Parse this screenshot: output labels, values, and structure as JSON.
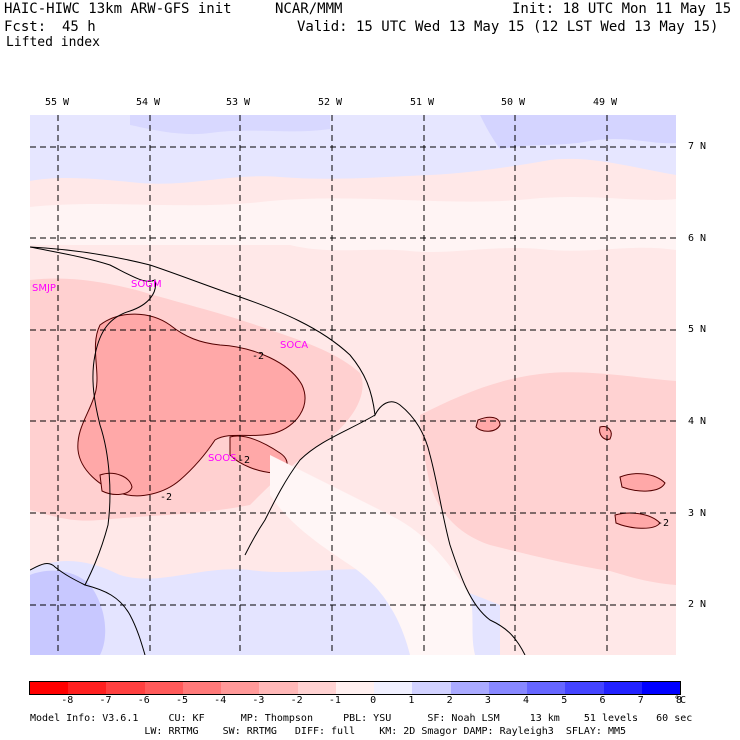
{
  "header": {
    "model_title": "HAIC-HIWC 13km ARW-GFS init",
    "center": "NCAR/MMM",
    "init": "Init: 18 UTC Mon 11 May 15",
    "fcst_label": "Fcst:",
    "fcst_value": "45 h",
    "valid": "Valid: 15 UTC Wed 13 May 15 (12 LST Wed 13 May 15)",
    "field_name": "Lifted index"
  },
  "lon_labels": [
    "55 W",
    "54 W",
    "53 W",
    "52 W",
    "51 W",
    "50 W",
    "49 W"
  ],
  "lat_labels": [
    "7 N",
    "6 N",
    "5 N",
    "4 N",
    "3 N",
    "2 N"
  ],
  "stations": [
    "SMJP",
    "SOGM",
    "SOCA",
    "SOOS"
  ],
  "contour_labels": [
    "-2",
    "-2",
    "-2",
    "-2"
  ],
  "colorbar": {
    "ticks": [
      "-8",
      "-7",
      "-6",
      "-5",
      "-4",
      "-3",
      "-2",
      "-1",
      "0",
      "1",
      "2",
      "3",
      "4",
      "5",
      "6",
      "7",
      "8"
    ],
    "unit": "°C",
    "colors": [
      "#ff0000",
      "#ff2020",
      "#ff4040",
      "#ff5a5a",
      "#ff7a7a",
      "#ff9999",
      "#ffb8b8",
      "#ffd2d2",
      "#fff0f0",
      "#f0f0ff",
      "#d2d2ff",
      "#aaaaff",
      "#8888ff",
      "#6666ff",
      "#4444ff",
      "#2222ff",
      "#0000ff"
    ]
  },
  "footer": {
    "line1": "Model Info: V3.6.1     CU: KF      MP: Thompson     PBL: YSU      SF: Noah LSM     13 km    51 levels   60 sec",
    "line2": "                   LW: RRTMG    SW: RRTMG   DIFF: full    KM: 2D Smagor DAMP: Rayleigh3  SFLAY: MM5"
  }
}
